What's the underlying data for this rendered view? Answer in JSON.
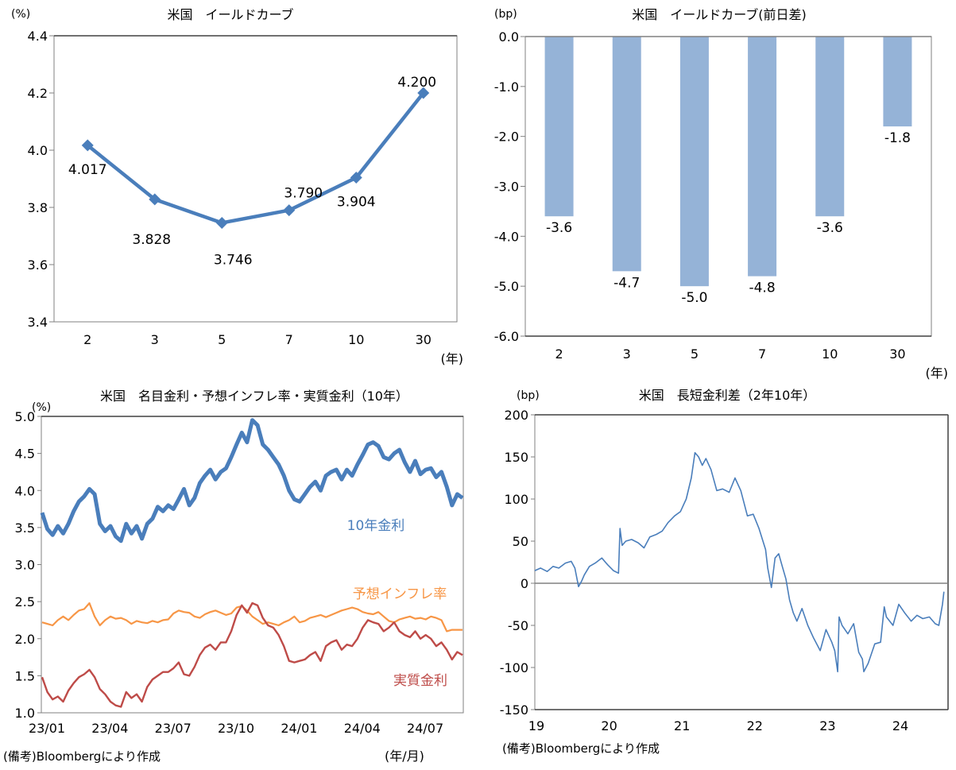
{
  "chart_data": [
    {
      "id": "yield-curve",
      "type": "line",
      "title": "米国　イールドカーブ",
      "ylabel": "(%)",
      "xlabel": "(年)",
      "categories": [
        "2",
        "3",
        "5",
        "7",
        "10",
        "30"
      ],
      "values": [
        4.017,
        3.828,
        3.746,
        3.79,
        3.904,
        4.2
      ],
      "data_labels": [
        "4.017",
        "3.828",
        "3.746",
        "3.790",
        "3.904",
        "4.200"
      ],
      "ylim": [
        3.4,
        4.4
      ],
      "yticks": [
        "3.4",
        "3.6",
        "3.8",
        "4.0",
        "4.2",
        "4.4"
      ],
      "ytick_values": [
        3.4,
        3.6,
        3.8,
        4.0,
        4.2,
        4.4
      ],
      "color": "#4a7ebb",
      "grid": false
    },
    {
      "id": "yield-curve-change",
      "type": "bar",
      "title": "米国　イールドカーブ(前日差)",
      "ylabel": "(bp)",
      "xlabel": "(年)",
      "categories": [
        "2",
        "3",
        "5",
        "7",
        "10",
        "30"
      ],
      "values": [
        -3.6,
        -4.7,
        -5.0,
        -4.8,
        -3.6,
        -1.8
      ],
      "data_labels": [
        "-3.6",
        "-4.7",
        "-5.0",
        "-4.8",
        "-3.6",
        "-1.8"
      ],
      "ylim": [
        -6.0,
        0.0
      ],
      "yticks": [
        "0.0",
        "-1.0",
        "-2.0",
        "-3.0",
        "-4.0",
        "-5.0",
        "-6.0"
      ],
      "ytick_values": [
        0,
        -1,
        -2,
        -3,
        -4,
        -5,
        -6
      ],
      "color": "#95b3d7",
      "grid": false
    },
    {
      "id": "nominal-breakeven-real",
      "type": "line",
      "title": "米国　名目金利・予想インフレ率・実質金利（10年）",
      "ylabel": "(%)",
      "xlabel": "(年/月)",
      "xticks": [
        "23/01",
        "23/04",
        "23/07",
        "23/10",
        "24/01",
        "24/04",
        "24/07"
      ],
      "ylim": [
        1.0,
        5.0
      ],
      "yticks": [
        "1.0",
        "1.5",
        "2.0",
        "2.5",
        "3.0",
        "3.5",
        "4.0",
        "4.5",
        "5.0"
      ],
      "ytick_values": [
        1.0,
        1.5,
        2.0,
        2.5,
        3.0,
        3.5,
        4.0,
        4.5,
        5.0
      ],
      "x_unit": "months since 2023-01",
      "x": [
        0,
        0.25,
        0.5,
        0.75,
        1,
        1.25,
        1.5,
        1.75,
        2,
        2.25,
        2.5,
        2.75,
        3,
        3.25,
        3.5,
        3.75,
        4,
        4.25,
        4.5,
        4.75,
        5,
        5.25,
        5.5,
        5.75,
        6,
        6.25,
        6.5,
        6.75,
        7,
        7.25,
        7.5,
        7.75,
        8,
        8.25,
        8.5,
        8.75,
        9,
        9.25,
        9.5,
        9.75,
        10,
        10.25,
        10.5,
        10.75,
        11,
        11.25,
        11.5,
        11.75,
        12,
        12.25,
        12.5,
        12.75,
        13,
        13.25,
        13.5,
        13.75,
        14,
        14.25,
        14.5,
        14.75,
        15,
        15.25,
        15.5,
        15.75,
        16,
        16.25,
        16.5,
        16.75,
        17,
        17.25,
        17.5,
        17.75,
        18,
        18.25,
        18.5,
        18.75,
        19,
        19.25,
        19.5,
        19.75,
        20
      ],
      "series": [
        {
          "name": "10年金利",
          "color": "#4a7ebb",
          "values": [
            3.7,
            3.48,
            3.4,
            3.52,
            3.42,
            3.55,
            3.72,
            3.85,
            3.92,
            4.02,
            3.95,
            3.55,
            3.45,
            3.52,
            3.38,
            3.32,
            3.55,
            3.42,
            3.52,
            3.35,
            3.55,
            3.62,
            3.78,
            3.72,
            3.8,
            3.75,
            3.88,
            4.02,
            3.8,
            3.9,
            4.1,
            4.2,
            4.28,
            4.15,
            4.25,
            4.3,
            4.45,
            4.62,
            4.78,
            4.65,
            4.95,
            4.88,
            4.62,
            4.55,
            4.45,
            4.35,
            4.2,
            4.0,
            3.88,
            3.85,
            3.95,
            4.05,
            4.12,
            4.0,
            4.2,
            4.25,
            4.28,
            4.15,
            4.28,
            4.2,
            4.35,
            4.48,
            4.62,
            4.65,
            4.6,
            4.45,
            4.42,
            4.5,
            4.55,
            4.38,
            4.25,
            4.4,
            4.22,
            4.28,
            4.3,
            4.18,
            4.25,
            4.05,
            3.8,
            3.95,
            3.9
          ]
        },
        {
          "name": "予想インフレ率",
          "color": "#f79646",
          "values": [
            2.22,
            2.2,
            2.18,
            2.25,
            2.3,
            2.25,
            2.32,
            2.38,
            2.4,
            2.48,
            2.3,
            2.18,
            2.25,
            2.3,
            2.27,
            2.28,
            2.25,
            2.2,
            2.24,
            2.22,
            2.21,
            2.24,
            2.22,
            2.25,
            2.26,
            2.34,
            2.38,
            2.36,
            2.35,
            2.3,
            2.28,
            2.33,
            2.36,
            2.38,
            2.35,
            2.32,
            2.34,
            2.42,
            2.44,
            2.38,
            2.3,
            2.25,
            2.2,
            2.22,
            2.2,
            2.18,
            2.22,
            2.25,
            2.3,
            2.22,
            2.24,
            2.28,
            2.3,
            2.32,
            2.29,
            2.32,
            2.35,
            2.38,
            2.4,
            2.42,
            2.4,
            2.36,
            2.34,
            2.33,
            2.36,
            2.3,
            2.24,
            2.22,
            2.26,
            2.28,
            2.3,
            2.27,
            2.28,
            2.26,
            2.3,
            2.28,
            2.25,
            2.1,
            2.12,
            2.12,
            2.12
          ]
        },
        {
          "name": "実質金利",
          "color": "#be4b48",
          "values": [
            1.48,
            1.28,
            1.18,
            1.22,
            1.15,
            1.3,
            1.4,
            1.48,
            1.52,
            1.58,
            1.48,
            1.32,
            1.25,
            1.15,
            1.1,
            1.08,
            1.28,
            1.2,
            1.25,
            1.15,
            1.35,
            1.45,
            1.5,
            1.55,
            1.55,
            1.6,
            1.68,
            1.52,
            1.5,
            1.62,
            1.78,
            1.88,
            1.92,
            1.85,
            1.95,
            1.95,
            2.1,
            2.32,
            2.45,
            2.35,
            2.48,
            2.45,
            2.28,
            2.18,
            2.15,
            2.05,
            1.9,
            1.7,
            1.68,
            1.7,
            1.72,
            1.78,
            1.82,
            1.7,
            1.9,
            1.95,
            1.98,
            1.85,
            1.92,
            1.9,
            2.0,
            2.15,
            2.25,
            2.22,
            2.2,
            2.1,
            2.15,
            2.22,
            2.1,
            2.05,
            2.02,
            2.1,
            2.0,
            2.05,
            2.0,
            1.9,
            1.95,
            1.85,
            1.72,
            1.82,
            1.78
          ]
        }
      ],
      "annotations": [
        "10年金利",
        "予想インフレ率",
        "実質金利"
      ],
      "grid": false
    },
    {
      "id": "term-spread",
      "type": "line",
      "title": "米国　長短金利差（2年10年）",
      "ylabel": "(bp)",
      "xticks": [
        "19",
        "20",
        "21",
        "22",
        "23",
        "24"
      ],
      "ylim": [
        -150,
        200
      ],
      "yticks": [
        "200",
        "150",
        "100",
        "50",
        "0",
        "-50",
        "-100",
        "-150"
      ],
      "ytick_values": [
        200,
        150,
        100,
        50,
        0,
        -50,
        -100,
        -150
      ],
      "x_unit": "years since 2019",
      "x": [
        0,
        0.08,
        0.17,
        0.25,
        0.33,
        0.42,
        0.5,
        0.55,
        0.6,
        0.64,
        0.68,
        0.75,
        0.83,
        0.92,
        1.0,
        1.08,
        1.15,
        1.17,
        1.2,
        1.25,
        1.33,
        1.42,
        1.5,
        1.58,
        1.67,
        1.75,
        1.83,
        1.92,
        2.0,
        2.08,
        2.15,
        2.2,
        2.25,
        2.3,
        2.35,
        2.42,
        2.5,
        2.58,
        2.67,
        2.75,
        2.83,
        2.92,
        3.0,
        3.08,
        3.17,
        3.2,
        3.25,
        3.3,
        3.35,
        3.4,
        3.45,
        3.5,
        3.55,
        3.6,
        3.67,
        3.75,
        3.83,
        3.92,
        4.0,
        4.08,
        4.12,
        4.16,
        4.18,
        4.22,
        4.3,
        4.38,
        4.45,
        4.5,
        4.52,
        4.58,
        4.67,
        4.75,
        4.8,
        4.83,
        4.92,
        5.0,
        5.08,
        5.17,
        5.25,
        5.33,
        5.42,
        5.5,
        5.55,
        5.6,
        5.62
      ],
      "values": [
        15,
        18,
        14,
        20,
        18,
        24,
        26,
        18,
        -4,
        2,
        10,
        20,
        24,
        30,
        22,
        15,
        12,
        65,
        45,
        50,
        52,
        48,
        42,
        55,
        58,
        62,
        72,
        80,
        85,
        100,
        125,
        155,
        150,
        140,
        148,
        135,
        110,
        112,
        108,
        125,
        110,
        80,
        82,
        65,
        40,
        18,
        -5,
        30,
        35,
        20,
        5,
        -20,
        -35,
        -45,
        -30,
        -50,
        -65,
        -80,
        -55,
        -70,
        -80,
        -105,
        -40,
        -50,
        -60,
        -48,
        -82,
        -90,
        -105,
        -95,
        -72,
        -70,
        -28,
        -40,
        -50,
        -25,
        -35,
        -45,
        -38,
        -42,
        -40,
        -48,
        -50,
        -25,
        -10
      ],
      "color": "#4a7ebb",
      "grid": false
    }
  ],
  "notes": {
    "source_left": "(備考)Bloombergにより作成",
    "source_right": "(備考)Bloombergにより作成"
  }
}
